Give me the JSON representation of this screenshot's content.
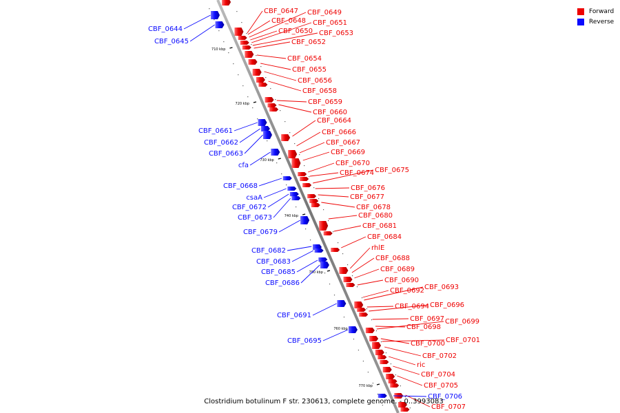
{
  "legend": [
    {
      "label": "Forward",
      "color": "#ee0000"
    },
    {
      "label": "Reverse",
      "color": "#0a0aff"
    }
  ],
  "caption": "Clostridium botulinum F str. 230613, complete genome. - 0..3993083",
  "ticks": [
    "710 kbp",
    "720 kbp",
    "730 kbp",
    "740 kbp",
    "750 kbp",
    "760 kbp",
    "770 kbp"
  ],
  "forward_genes": [
    "CBF_0647",
    "CBF_0648",
    "CBF_0649",
    "CBF_0650",
    "CBF_0651",
    "CBF_0653",
    "CBF_0652",
    "CBF_0654",
    "CBF_0655",
    "CBF_0656",
    "CBF_0658",
    "CBF_0659",
    "CBF_0660",
    "CBF_0664",
    "CBF_0666",
    "CBF_0667",
    "CBF_0669",
    "CBF_0670",
    "CBF_0674",
    "CBF_0675",
    "CBF_0676",
    "CBF_0677",
    "CBF_0678",
    "CBF_0680",
    "CBF_0681",
    "CBF_0684",
    "rhlE",
    "CBF_0688",
    "CBF_0689",
    "CBF_0690",
    "CBF_0692",
    "CBF_0693",
    "CBF_0694",
    "CBF_0696",
    "CBF_0697",
    "CBF_0698",
    "CBF_0699",
    "CBF_0700",
    "CBF_0701",
    "CBF_0702",
    "ric",
    "CBF_0704",
    "CBF_0705",
    "CBF_0707"
  ],
  "reverse_genes": [
    "CBF_0644",
    "CBF_0645",
    "CBF_0661",
    "CBF_0662",
    "CBF_0663",
    "cfa",
    "CBF_0668",
    "csaA",
    "CBF_0672",
    "CBF_0673",
    "CBF_0679",
    "CBF_0682",
    "CBF_0683",
    "CBF_0685",
    "CBF_0686",
    "CBF_0691",
    "CBF_0695",
    "CBF_0706"
  ]
}
